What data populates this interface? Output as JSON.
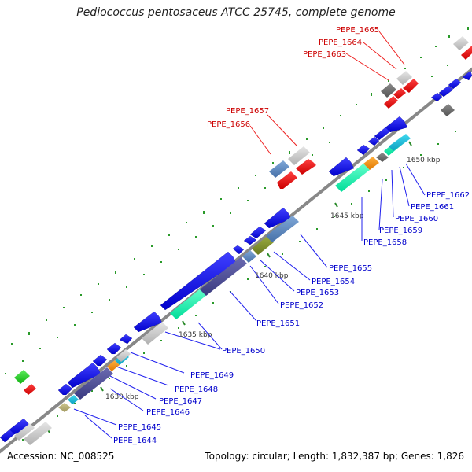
{
  "title": "Pediococcus pentosaceus ATCC 25745, complete genome",
  "footer": {
    "accession": "Accession: NC_008525",
    "summary": "Topology: circular; Length: 1,832,387 bp; Genes: 1,826"
  },
  "colors": {
    "backbone": "#888888",
    "forward_cds": "#0000ee",
    "reverse_cds": "#ee0000",
    "label_blue": "#0000cc",
    "label_red": "#cc0000"
  },
  "scale_labels": [
    "1630 kbp",
    "1635 kbp",
    "1640 kbp",
    "1645 kbp",
    "1650 kbp"
  ],
  "gene_labels": {
    "blue": [
      "PEPE_1644",
      "PEPE_1645",
      "PEPE_1646",
      "PEPE_1647",
      "PEPE_1648",
      "PEPE_1649",
      "PEPE_1650",
      "PEPE_1651",
      "PEPE_1652",
      "PEPE_1653",
      "PEPE_1654",
      "PEPE_1655",
      "PEPE_1658",
      "PEPE_1659",
      "PEPE_1660",
      "PEPE_1661",
      "PEPE_1662"
    ],
    "red": [
      "PEPE_1656",
      "PEPE_1657",
      "PEPE_1663",
      "PEPE_1664",
      "PEPE_1665"
    ]
  }
}
